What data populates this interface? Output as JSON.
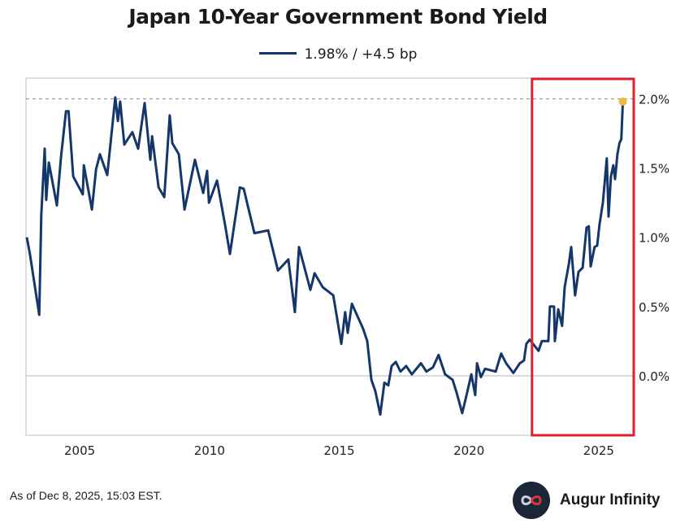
{
  "chart_data": {
    "type": "line",
    "title": "Japan 10-Year Government Bond Yield",
    "legend": {
      "label": "1.98% / +4.5 bp",
      "placement": "top-center"
    },
    "xlabel": "",
    "ylabel": "",
    "xlim": [
      2002.93,
      2026.35
    ],
    "ylim": [
      -0.43,
      2.15
    ],
    "x_ticks": [
      2005,
      2010,
      2015,
      2020,
      2025
    ],
    "x_tick_labels": [
      "2005",
      "2010",
      "2015",
      "2020",
      "2025"
    ],
    "y_ticks": [
      0,
      0.5,
      1.0,
      1.5,
      2.0
    ],
    "y_tick_labels": [
      "0.0%",
      "0.5%",
      "1.0%",
      "1.5%",
      "2.0%"
    ],
    "y_axis_side": "right",
    "reference_line": {
      "y": 2.0,
      "style": "dashed"
    },
    "zero_line": true,
    "highlight_box": {
      "x_start": 2022.43,
      "x_end": 2026.35,
      "color": "#e0202a"
    },
    "series": [
      {
        "color": "#14366b",
        "last_point_color": "#f0b83a",
        "points": [
          [
            2002.96,
            1.0
          ],
          [
            2003.08,
            0.88
          ],
          [
            2003.44,
            0.44
          ],
          [
            2003.52,
            1.16
          ],
          [
            2003.65,
            1.64
          ],
          [
            2003.71,
            1.27
          ],
          [
            2003.81,
            1.54
          ],
          [
            2004.12,
            1.23
          ],
          [
            2004.28,
            1.58
          ],
          [
            2004.47,
            1.91
          ],
          [
            2004.57,
            1.91
          ],
          [
            2004.75,
            1.44
          ],
          [
            2005.12,
            1.31
          ],
          [
            2005.16,
            1.52
          ],
          [
            2005.47,
            1.2
          ],
          [
            2005.63,
            1.49
          ],
          [
            2005.78,
            1.6
          ],
          [
            2006.06,
            1.45
          ],
          [
            2006.37,
            2.01
          ],
          [
            2006.47,
            1.84
          ],
          [
            2006.56,
            1.98
          ],
          [
            2006.72,
            1.67
          ],
          [
            2007.03,
            1.76
          ],
          [
            2007.25,
            1.64
          ],
          [
            2007.5,
            1.97
          ],
          [
            2007.72,
            1.56
          ],
          [
            2007.79,
            1.73
          ],
          [
            2008.04,
            1.36
          ],
          [
            2008.26,
            1.29
          ],
          [
            2008.47,
            1.88
          ],
          [
            2008.57,
            1.68
          ],
          [
            2008.82,
            1.6
          ],
          [
            2009.04,
            1.2
          ],
          [
            2009.44,
            1.56
          ],
          [
            2009.76,
            1.32
          ],
          [
            2009.91,
            1.48
          ],
          [
            2009.98,
            1.25
          ],
          [
            2010.29,
            1.41
          ],
          [
            2010.6,
            1.09
          ],
          [
            2010.79,
            0.88
          ],
          [
            2011.17,
            1.36
          ],
          [
            2011.32,
            1.35
          ],
          [
            2011.73,
            1.03
          ],
          [
            2012.26,
            1.05
          ],
          [
            2012.64,
            0.76
          ],
          [
            2013.04,
            0.84
          ],
          [
            2013.29,
            0.46
          ],
          [
            2013.45,
            0.93
          ],
          [
            2013.89,
            0.62
          ],
          [
            2014.05,
            0.74
          ],
          [
            2014.36,
            0.64
          ],
          [
            2014.77,
            0.58
          ],
          [
            2015.08,
            0.23
          ],
          [
            2015.23,
            0.46
          ],
          [
            2015.33,
            0.31
          ],
          [
            2015.49,
            0.52
          ],
          [
            2015.92,
            0.34
          ],
          [
            2016.08,
            0.25
          ],
          [
            2016.24,
            -0.03
          ],
          [
            2016.39,
            -0.11
          ],
          [
            2016.58,
            -0.28
          ],
          [
            2016.74,
            -0.05
          ],
          [
            2016.89,
            -0.07
          ],
          [
            2017.02,
            0.07
          ],
          [
            2017.18,
            0.1
          ],
          [
            2017.36,
            0.03
          ],
          [
            2017.58,
            0.07
          ],
          [
            2017.8,
            0.01
          ],
          [
            2018.15,
            0.09
          ],
          [
            2018.36,
            0.03
          ],
          [
            2018.61,
            0.06
          ],
          [
            2018.83,
            0.15
          ],
          [
            2019.08,
            0.01
          ],
          [
            2019.37,
            -0.03
          ],
          [
            2019.52,
            -0.12
          ],
          [
            2019.74,
            -0.27
          ],
          [
            2019.93,
            -0.12
          ],
          [
            2020.09,
            0.01
          ],
          [
            2020.24,
            -0.14
          ],
          [
            2020.31,
            0.09
          ],
          [
            2020.46,
            -0.01
          ],
          [
            2020.62,
            0.05
          ],
          [
            2021.03,
            0.03
          ],
          [
            2021.24,
            0.16
          ],
          [
            2021.43,
            0.09
          ],
          [
            2021.71,
            0.02
          ],
          [
            2021.96,
            0.09
          ],
          [
            2022.12,
            0.11
          ],
          [
            2022.21,
            0.23
          ],
          [
            2022.34,
            0.26
          ],
          [
            2022.68,
            0.18
          ],
          [
            2022.81,
            0.25
          ],
          [
            2023.06,
            0.25
          ],
          [
            2023.12,
            0.5
          ],
          [
            2023.28,
            0.5
          ],
          [
            2023.31,
            0.25
          ],
          [
            2023.44,
            0.48
          ],
          [
            2023.59,
            0.36
          ],
          [
            2023.69,
            0.64
          ],
          [
            2023.85,
            0.81
          ],
          [
            2023.94,
            0.93
          ],
          [
            2024.09,
            0.58
          ],
          [
            2024.22,
            0.75
          ],
          [
            2024.38,
            0.78
          ],
          [
            2024.53,
            1.07
          ],
          [
            2024.62,
            1.08
          ],
          [
            2024.69,
            0.79
          ],
          [
            2024.84,
            0.93
          ],
          [
            2024.94,
            0.94
          ],
          [
            2025.03,
            1.09
          ],
          [
            2025.16,
            1.25
          ],
          [
            2025.25,
            1.44
          ],
          [
            2025.31,
            1.57
          ],
          [
            2025.38,
            1.15
          ],
          [
            2025.47,
            1.44
          ],
          [
            2025.56,
            1.52
          ],
          [
            2025.63,
            1.42
          ],
          [
            2025.72,
            1.6
          ],
          [
            2025.8,
            1.68
          ],
          [
            2025.87,
            1.71
          ],
          [
            2025.93,
            1.98
          ]
        ]
      }
    ]
  },
  "footer": {
    "note": "As of Dec 8, 2025, 15:03 EST.",
    "brand": "Augur Infinity",
    "logo_icon": "infinity-icon"
  }
}
